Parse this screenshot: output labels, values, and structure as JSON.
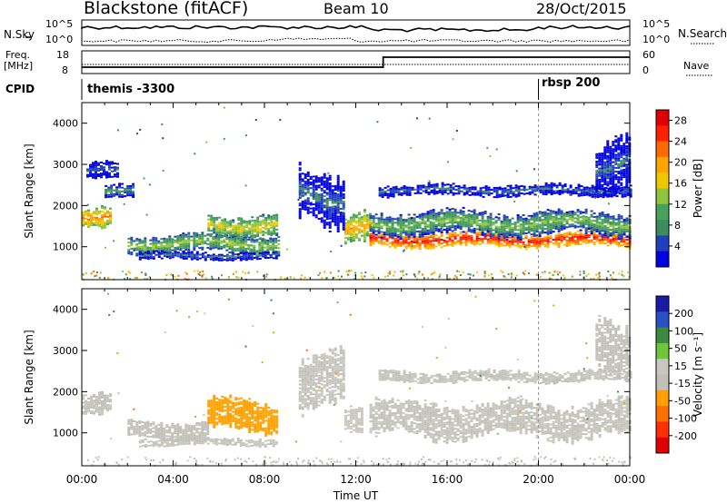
{
  "header": {
    "station": "Blackstone (fitACF)",
    "beam": "Beam 10",
    "date": "28/Oct/2015"
  },
  "panels": {
    "nsky": {
      "label": "N.Sky",
      "ticks": [
        "10^5",
        "10^0"
      ],
      "right_ticks": [
        "10^5",
        "10^0"
      ],
      "right_label": "N.Search"
    },
    "freq": {
      "label_line1": "Freq.",
      "label_line2": "[MHz]",
      "ticks": [
        "18",
        "8"
      ],
      "right_ticks": [
        "60",
        "0"
      ],
      "right_label": "Nave"
    },
    "cpid": {
      "label": "CPID",
      "segments": [
        {
          "name": "themis -3300",
          "start_hour": 0
        },
        {
          "name": "rbsp 200",
          "start_hour": 20
        }
      ]
    }
  },
  "colors": {
    "power_scale": [
      "#0000e0",
      "#1f3fbf",
      "#3d8c5c",
      "#47a35a",
      "#8fc43c",
      "#f0c800",
      "#ffa500",
      "#ff6a00",
      "#ff2000",
      "#e00000"
    ],
    "velocity_scale": [
      "#1a1aa8",
      "#2a50c8",
      "#3a8a40",
      "#6cc83a",
      "#c8c8c0",
      "#c0c0b8",
      "#ffa000",
      "#ff7000",
      "#ff3000",
      "#e00000"
    ]
  },
  "chart_data": [
    {
      "type": "heatmap",
      "title": "Power",
      "ylabel": "Slant Range [km]",
      "y_ticks": [
        "1000",
        "2000",
        "3000",
        "4000"
      ],
      "ylim": [
        200,
        4500
      ],
      "colorbar_label": "Power [dB]",
      "colorbar_ticks": [
        "4",
        "8",
        "12",
        "16",
        "20",
        "24",
        "28"
      ],
      "colorbar_range": [
        0,
        30
      ],
      "regions": [
        {
          "x": [
            0.0,
            1.2
          ],
          "y_center": 1750,
          "half_width": 230,
          "level": 22
        },
        {
          "x": [
            1.0,
            2.2
          ],
          "y_center": 2300,
          "half_width": 150,
          "level": 10
        },
        {
          "x": [
            0.2,
            1.6
          ],
          "y_center": 2800,
          "half_width": 180,
          "level": 6
        },
        {
          "x": [
            2.0,
            8.6
          ],
          "y_center": 1050,
          "half_width": 210,
          "level": 14
        },
        {
          "x": [
            5.5,
            8.6
          ],
          "y_center": 1500,
          "half_width": 250,
          "level": 17
        },
        {
          "x": [
            2.5,
            8.5
          ],
          "y_center": 760,
          "half_width": 80,
          "level": 8
        },
        {
          "x": [
            11.5,
            12.6
          ],
          "y_center": 1400,
          "half_width": 320,
          "level": 20
        },
        {
          "x": [
            12.6,
            24.0
          ],
          "y_center": 1150,
          "half_width": 150,
          "level": 27
        },
        {
          "x": [
            12.6,
            24.0
          ],
          "y_center": 1550,
          "half_width": 260,
          "level": 13
        },
        {
          "x": [
            13.0,
            24.0
          ],
          "y_center": 2350,
          "half_width": 120,
          "level": 7
        },
        {
          "x": [
            22.5,
            24.0
          ],
          "y_center": 3000,
          "half_width": 600,
          "level": 6
        },
        {
          "x": [
            9.5,
            11.5
          ],
          "y_center": 2200,
          "half_width": 600,
          "level": 7
        }
      ]
    },
    {
      "type": "heatmap",
      "title": "Velocity",
      "ylabel": "Slant Range [km]",
      "y_ticks": [
        "1000",
        "2000",
        "3000",
        "4000"
      ],
      "ylim": [
        200,
        4500
      ],
      "colorbar_label": "Velocity [m s⁻¹]",
      "colorbar_ticks": [
        "200",
        "100",
        "50",
        "15",
        "-15",
        "-50",
        "-100",
        "-200"
      ],
      "colorbar_range": [
        -250,
        250
      ],
      "regions": [
        {
          "x": [
            0.0,
            1.2
          ],
          "y_center": 1750,
          "half_width": 230,
          "level": 0
        },
        {
          "x": [
            2.0,
            5.5
          ],
          "y_center": 1050,
          "half_width": 210,
          "level": -20
        },
        {
          "x": [
            5.5,
            8.6
          ],
          "y_center": 1400,
          "half_width": 350,
          "level": -60
        },
        {
          "x": [
            2.5,
            8.5
          ],
          "y_center": 760,
          "half_width": 80,
          "level": 0
        },
        {
          "x": [
            11.5,
            12.3
          ],
          "y_center": 1400,
          "half_width": 300,
          "level": 30
        },
        {
          "x": [
            12.6,
            24.0
          ],
          "y_center": 1300,
          "half_width": 400,
          "level": 0
        },
        {
          "x": [
            13.0,
            24.0
          ],
          "y_center": 2350,
          "half_width": 120,
          "level": 0
        },
        {
          "x": [
            22.5,
            24.0
          ],
          "y_center": 3000,
          "half_width": 600,
          "level": -30
        },
        {
          "x": [
            9.5,
            11.5
          ],
          "y_center": 2200,
          "half_width": 600,
          "level": 0
        }
      ]
    }
  ],
  "x_axis": {
    "label": "Time UT",
    "ticks": [
      "00:00",
      "04:00",
      "08:00",
      "12:00",
      "16:00",
      "20:00",
      "00:00"
    ],
    "xlim": [
      0,
      24
    ]
  }
}
